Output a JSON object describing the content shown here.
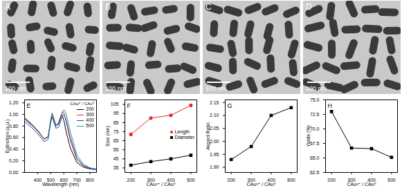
{
  "images": [
    {
      "label": "A",
      "scale_bar": "100 nm"
    },
    {
      "label": "B",
      "scale_bar": "100 nm"
    },
    {
      "label": "C",
      "scale_bar": "100 nm"
    },
    {
      "label": "D",
      "scale_bar": "100 nm"
    }
  ],
  "chart_data": [
    {
      "type": "line",
      "title": "E",
      "xlabel": "Wavelength (nm)",
      "ylabel": "Extinction (a.u.)",
      "legend": "top-right",
      "legend_title": "CAu³⁺ / CAu⁰",
      "x": [
        300,
        350,
        400,
        450,
        480,
        500,
        510,
        520,
        540,
        560,
        580,
        590,
        600,
        610,
        620,
        650,
        700,
        750,
        800,
        850
      ],
      "series": [
        {
          "name": "200",
          "color": "#000000",
          "values": [
            0.93,
            0.83,
            0.72,
            0.58,
            0.62,
            0.88,
            0.96,
            0.9,
            0.8,
            0.86,
            0.99,
            0.97,
            0.9,
            0.79,
            0.68,
            0.42,
            0.17,
            0.09,
            0.06,
            0.05
          ]
        },
        {
          "name": "300",
          "color": "#e8281e",
          "values": [
            0.92,
            0.82,
            0.71,
            0.57,
            0.61,
            0.9,
            1.0,
            0.93,
            0.8,
            0.84,
            0.98,
            1.05,
            1.03,
            0.95,
            0.85,
            0.55,
            0.22,
            0.11,
            0.07,
            0.05
          ]
        },
        {
          "name": "400",
          "color": "#2340d8",
          "values": [
            0.88,
            0.78,
            0.67,
            0.53,
            0.57,
            0.86,
            0.96,
            0.9,
            0.76,
            0.78,
            0.91,
            0.98,
            1.0,
            0.96,
            0.88,
            0.6,
            0.25,
            0.12,
            0.07,
            0.05
          ]
        },
        {
          "name": "500",
          "color": "#2a9d8f",
          "values": [
            0.95,
            0.85,
            0.73,
            0.58,
            0.61,
            0.92,
            1.03,
            0.97,
            0.82,
            0.82,
            0.95,
            1.04,
            1.08,
            1.06,
            0.99,
            0.7,
            0.3,
            0.14,
            0.08,
            0.06
          ]
        }
      ],
      "xlim": [
        300,
        850
      ],
      "xticks": [
        400,
        500,
        600,
        700,
        800
      ],
      "ylim": [
        0,
        1.25
      ],
      "yticks": [
        {
          "value": 0,
          "label": "0.00"
        },
        {
          "value": 0.2,
          "label": "0.20"
        },
        {
          "value": 0.4,
          "label": "0.40"
        },
        {
          "value": 0.6,
          "label": "0.60"
        },
        {
          "value": 0.8,
          "label": "0.80"
        },
        {
          "value": 1,
          "label": "1.00"
        },
        {
          "value": 1.2,
          "label": "1.20"
        }
      ]
    },
    {
      "type": "line",
      "title": "F",
      "xlabel": "CAu³⁺ / CAu⁰",
      "ylabel": "Size (nm)",
      "legend": "center-right",
      "x": [
        200,
        300,
        400,
        500
      ],
      "series": [
        {
          "name": "Length",
          "color": "#e8281e",
          "marker": "circle",
          "values": [
            72,
            90,
            93,
            104
          ]
        },
        {
          "name": "Diameter",
          "color": "#000000",
          "marker": "square",
          "values": [
            38,
            42,
            45,
            49
          ]
        }
      ],
      "xlim": [
        170,
        530
      ],
      "xticks": [
        200,
        300,
        400,
        500
      ],
      "ylim": [
        30,
        110
      ],
      "yticks": [
        35,
        45,
        55,
        65,
        75,
        85,
        95,
        105
      ]
    },
    {
      "type": "line",
      "title": "G",
      "xlabel": "CAu³⁺ / CAu⁰",
      "ylabel": "Aspect Ratio",
      "x": [
        200,
        300,
        400,
        500
      ],
      "values": [
        1.93,
        1.98,
        2.1,
        2.13
      ],
      "color": "#000000",
      "marker": "square",
      "xlim": [
        170,
        530
      ],
      "xticks": [
        200,
        300,
        400,
        500
      ],
      "ylim": [
        1.88,
        2.16
      ],
      "yticks": [
        {
          "value": 1.9,
          "label": "1.90"
        },
        1.95,
        {
          "value": 2,
          "label": "2.00"
        },
        2.05,
        {
          "value": 2.1,
          "label": "2.10"
        },
        2.15
      ]
    },
    {
      "type": "line",
      "title": "H",
      "xlabel": "CAu³⁺ / CAu⁰",
      "ylabel": "Yields (%)",
      "x": [
        200,
        300,
        400,
        500
      ],
      "values": [
        73.0,
        66.7,
        66.6,
        65.1
      ],
      "color": "#000000",
      "marker": "square",
      "xlim": [
        170,
        530
      ],
      "xticks": [
        200,
        300,
        400,
        500
      ],
      "ylim": [
        62.5,
        75
      ],
      "yticks": [
        62.5,
        {
          "value": 65,
          "label": "65.0"
        },
        67.5,
        {
          "value": 70,
          "label": "70.0"
        },
        72.5,
        {
          "value": 75,
          "label": "75.0"
        }
      ]
    }
  ]
}
